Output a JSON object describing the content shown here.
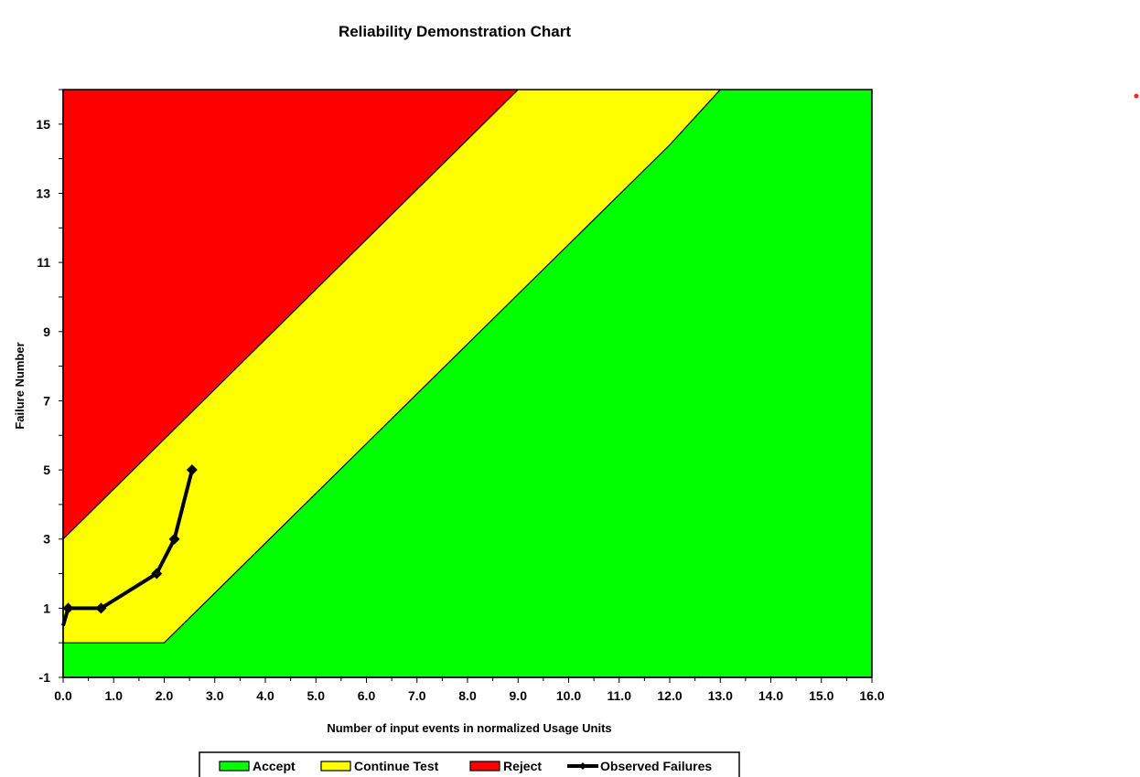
{
  "chart_data": {
    "type": "area",
    "title": "Reliability Demonstration Chart",
    "xlabel": "Number of input events in normalized Usage Units",
    "ylabel": "Failure Number",
    "xlim": [
      0,
      16
    ],
    "ylim": [
      -1,
      16
    ],
    "x_ticks": [
      "0.0",
      "1.0",
      "2.0",
      "3.0",
      "4.0",
      "5.0",
      "6.0",
      "7.0",
      "8.0",
      "9.0",
      "10.0",
      "11.0",
      "12.0",
      "13.0",
      "14.0",
      "15.0",
      "16.0"
    ],
    "y_ticks": [
      "-1",
      "1",
      "3",
      "5",
      "7",
      "9",
      "11",
      "13",
      "15"
    ],
    "grid": false,
    "legend_position": "bottom",
    "regions": [
      {
        "name": "Accept",
        "color": "#00ff00",
        "boundary": [
          [
            0,
            0
          ],
          [
            2.0,
            0
          ],
          [
            12.0,
            14.4
          ],
          [
            13.0,
            16
          ]
        ]
      },
      {
        "name": "Continue Test",
        "color": "#ffff00",
        "boundary": [
          [
            0,
            3
          ],
          [
            9.0,
            16
          ]
        ]
      },
      {
        "name": "Reject",
        "color": "#ff0000"
      }
    ],
    "series": [
      {
        "name": "Observed Failures",
        "color": "#000000",
        "x": [
          0.0,
          0.1,
          0.75,
          1.85,
          2.2,
          2.55
        ],
        "y": [
          0.5,
          1,
          1,
          2,
          3,
          5
        ]
      }
    ],
    "legend": [
      {
        "label": "Accept",
        "color": "#00ff00",
        "kind": "box"
      },
      {
        "label": "Continue Test",
        "color": "#ffff00",
        "kind": "box"
      },
      {
        "label": "Reject",
        "color": "#ff0000",
        "kind": "box"
      },
      {
        "label": "Observed Failures",
        "color": "#000000",
        "kind": "line"
      }
    ]
  }
}
